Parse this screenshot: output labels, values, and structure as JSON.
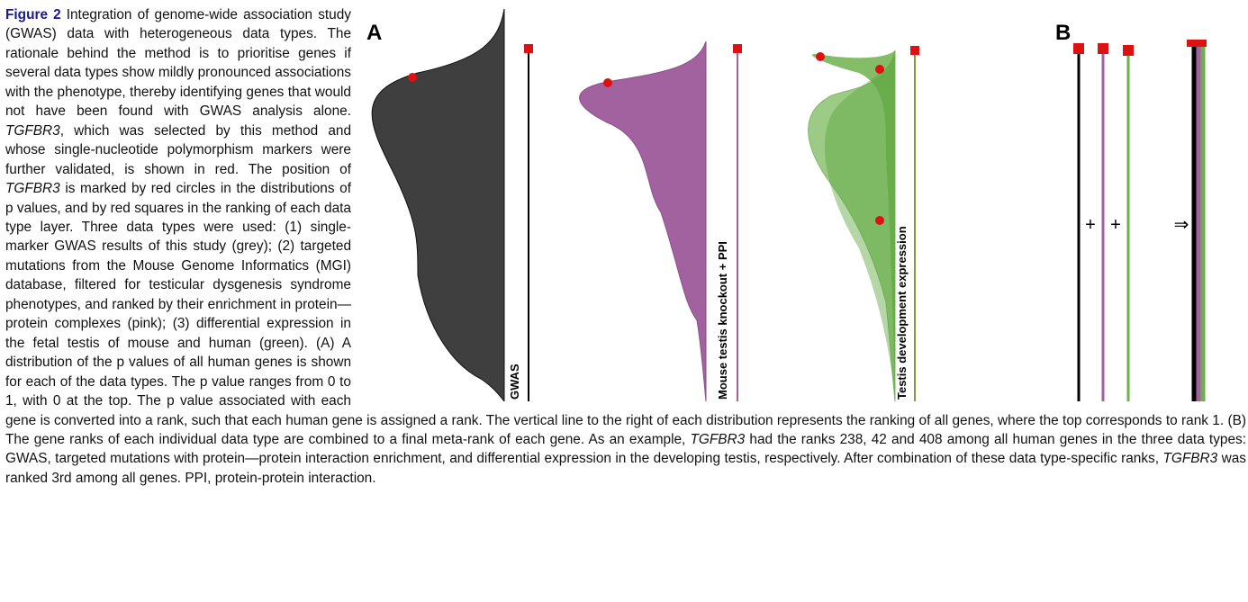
{
  "figure": {
    "panel_a": "A",
    "panel_b": "B",
    "labels": [
      "GWAS",
      "Mouse testis knockout + PPI",
      "Testis development expression"
    ],
    "plus": [
      "+",
      "+"
    ],
    "arrow": "⇒"
  },
  "caption": {
    "label": "Figure 2",
    "parts": [
      "Integration of genome-wide association study (GWAS) data with heterogeneous data types. The rationale behind the method is to prioritise genes if several data types show mildly pronounced associations with the phenotype, thereby identifying genes that would not have been found with GWAS analysis alone. ",
      "TGFBR3",
      ", which was selected by this method and whose single-nucleotide polymorphism markers were further validated, is shown in red. The position of ",
      "TGFBR3",
      " is marked by red circles in the distributions of p values, and by red squares in the ranking of each data type layer. Three data types were used: (1) single-marker GWAS results of this study (grey); (2) targeted mutations from the Mouse Genome Informatics (MGI) database, filtered for testicular dysgenesis syndrome phenotypes, and ranked by their enrichment in protein—protein complexes (pink); (3) differential expression in the fetal testis of mouse and human (green). (A) A distribution of the p values of all human genes is shown for each of the data types. The p value ranges from 0 to 1, with 0 at the top. The p value associated with each gene is converted into a rank, such that each human gene is assigned a rank. The vertical line to the right of each distribution represents the ranking of all genes, where the top corresponds to rank 1. (B) The gene ranks of each individual data type are combined to a final meta-rank of each gene. As an example, ",
      "TGFBR3",
      " had the ranks 238, 42 and 408 among all human genes in the three data types: GWAS, targeted mutations with protein—protein interaction enrichment, and differential expression in the developing testis, respectively. After combination of these data type-specific ranks, ",
      "TGFBR3",
      " was ranked 3rd among all genes. PPI, protein-protein interaction."
    ]
  }
}
